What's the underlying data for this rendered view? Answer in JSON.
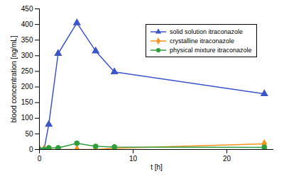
{
  "chart_data": {
    "type": "line",
    "x_label": "t [h]",
    "y_label": "blood concentration [ng/mL]",
    "x": [
      0,
      0.5,
      1,
      2,
      4,
      6,
      8,
      24
    ],
    "series": [
      {
        "name": "solid solution itraconazole",
        "color": "#3c55c8",
        "marker": "triangle",
        "values": [
          0,
          0,
          80,
          307,
          405,
          315,
          248,
          178
        ]
      },
      {
        "name": "crystalline itraconazole",
        "color": "#f7941d",
        "marker": "diamond",
        "values": [
          0,
          0,
          0,
          0,
          0,
          0,
          4,
          18
        ]
      },
      {
        "name": "physical mixture itraconazole",
        "color": "#2e9e3e",
        "marker": "circle",
        "values": [
          0,
          0,
          5,
          5,
          20,
          10,
          8,
          7
        ]
      }
    ],
    "xlim": [
      0,
      25
    ],
    "xticks": [
      0,
      10,
      20
    ],
    "ylim": [
      0,
      450
    ],
    "yticks": [
      0,
      50,
      100,
      150,
      200,
      250,
      300,
      350,
      400,
      450
    ],
    "legend": "upper right"
  }
}
